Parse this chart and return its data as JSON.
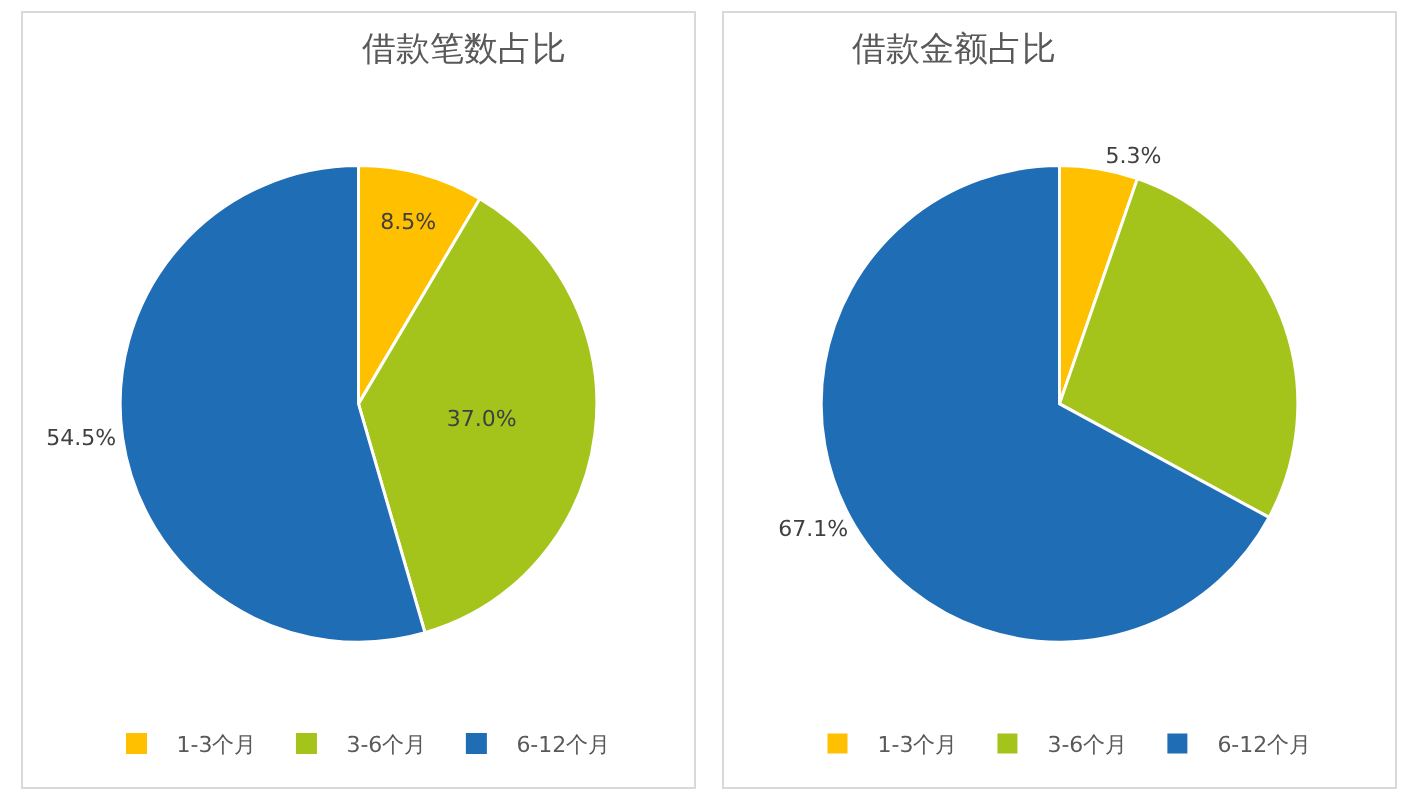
{
  "chart_data": [
    {
      "type": "pie",
      "title": "借款笔数占比",
      "categories": [
        "1-3个月",
        "3-6个月",
        "6-12个月"
      ],
      "values": [
        8.5,
        37.0,
        54.5
      ],
      "colors": [
        "#ffc000",
        "#a5c41b",
        "#1f6db5"
      ],
      "value_labels": [
        "8.5%",
        "37.0%",
        "54.5%"
      ],
      "legend": "bottom"
    },
    {
      "type": "pie",
      "title": "借款金额占比",
      "categories": [
        "1-3个月",
        "3-6个月",
        "6-12个月"
      ],
      "values": [
        5.3,
        27.6,
        67.1
      ],
      "colors": [
        "#ffc000",
        "#a5c41b",
        "#1f6db5"
      ],
      "value_labels": [
        "5.3%",
        null,
        "67.1%"
      ],
      "legend": "bottom"
    }
  ]
}
